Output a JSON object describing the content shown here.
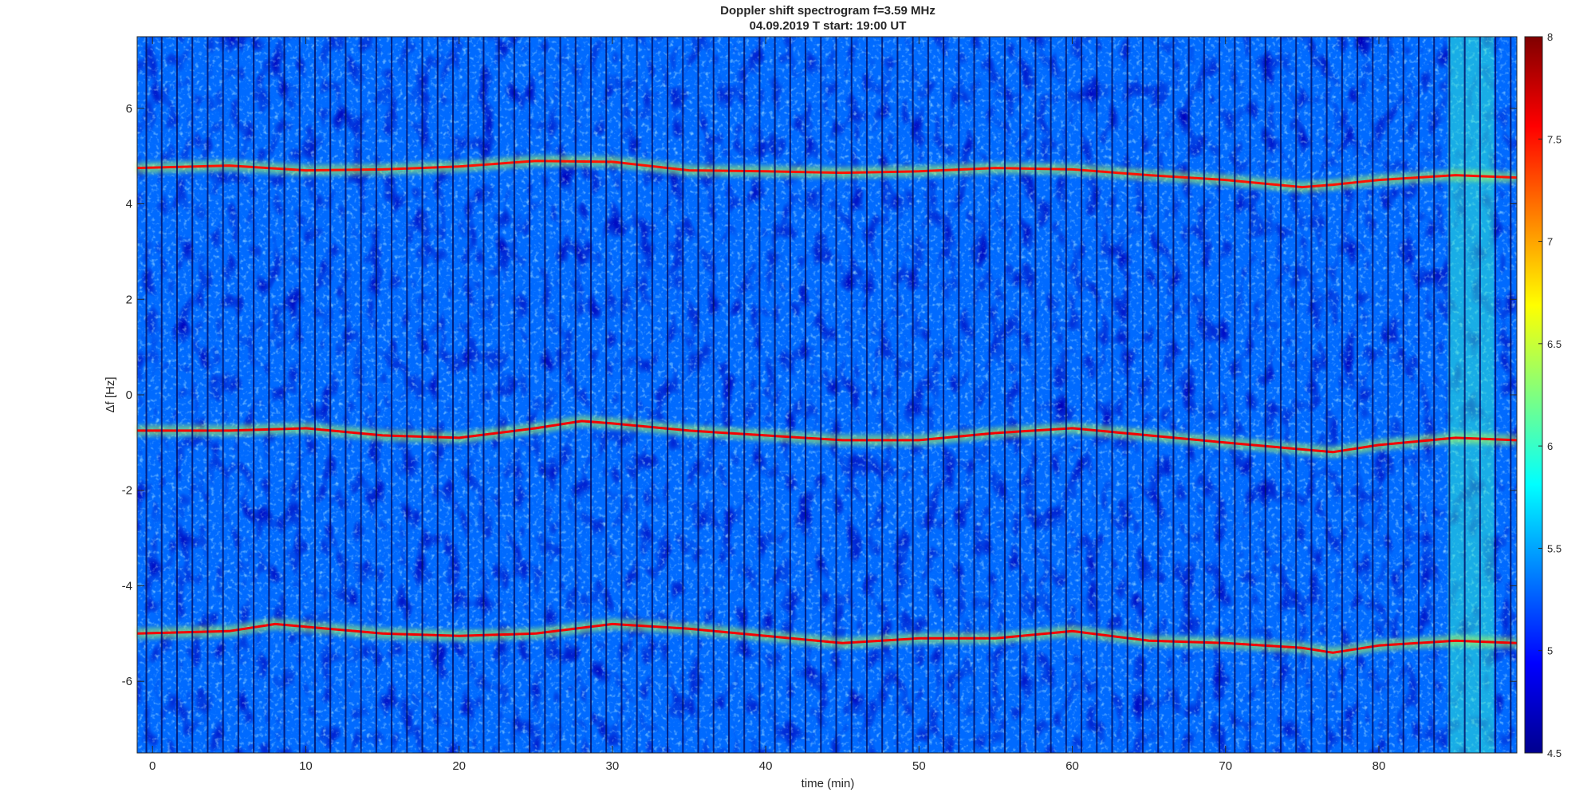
{
  "chart_data": {
    "type": "heatmap",
    "title": "Doppler shift spectrogram f=3.59 MHz",
    "subtitle": "04.09.2019   T start: 19:00 UT",
    "xlabel": "time (min)",
    "ylabel": "Δf [Hz]",
    "xlim": [
      -1,
      89
    ],
    "ylim": [
      -7.5,
      7.5
    ],
    "x_ticks": [
      "0",
      "10",
      "20",
      "30",
      "40",
      "50",
      "60",
      "70",
      "80"
    ],
    "y_ticks": [
      "6",
      "4",
      "2",
      "0",
      "-2",
      "-4",
      "-6"
    ],
    "colorbar": {
      "colormap": "jet",
      "range": [
        4.5,
        8
      ],
      "ticks": [
        "8",
        "7.5",
        "7",
        "6.5",
        "6",
        "5.5",
        "5",
        "4.5"
      ]
    },
    "background_level": 5.3,
    "traces": [
      {
        "t": [
          -1,
          5,
          10,
          15,
          20,
          25,
          30,
          35,
          40,
          45,
          50,
          55,
          60,
          65,
          70,
          75,
          77,
          80,
          85,
          89
        ],
        "df": [
          4.75,
          4.8,
          4.7,
          4.72,
          4.78,
          4.9,
          4.88,
          4.7,
          4.68,
          4.65,
          4.68,
          4.75,
          4.72,
          4.6,
          4.5,
          4.35,
          4.4,
          4.5,
          4.6,
          4.55
        ],
        "level": 7.5
      },
      {
        "t": [
          -1,
          5,
          10,
          15,
          20,
          25,
          28,
          30,
          35,
          40,
          45,
          50,
          55,
          60,
          65,
          70,
          77,
          80,
          85,
          89
        ],
        "df": [
          -0.75,
          -0.75,
          -0.7,
          -0.85,
          -0.9,
          -0.7,
          -0.55,
          -0.6,
          -0.75,
          -0.85,
          -0.95,
          -0.95,
          -0.8,
          -0.7,
          -0.85,
          -1.0,
          -1.2,
          -1.05,
          -0.9,
          -0.95
        ],
        "level": 7.6
      },
      {
        "t": [
          -1,
          5,
          8,
          15,
          20,
          25,
          30,
          35,
          40,
          45,
          50,
          55,
          60,
          65,
          70,
          75,
          77,
          80,
          85,
          89
        ],
        "df": [
          -5.0,
          -4.95,
          -4.8,
          -5.0,
          -5.05,
          -5.0,
          -4.8,
          -4.9,
          -5.05,
          -5.2,
          -5.1,
          -5.1,
          -4.95,
          -5.15,
          -5.2,
          -5.3,
          -5.4,
          -5.25,
          -5.15,
          -5.2
        ],
        "level": 7.6
      }
    ],
    "pattern": {
      "stripe_period_min": 1.0,
      "bright_band_min": [
        84.5,
        87.5
      ]
    }
  }
}
